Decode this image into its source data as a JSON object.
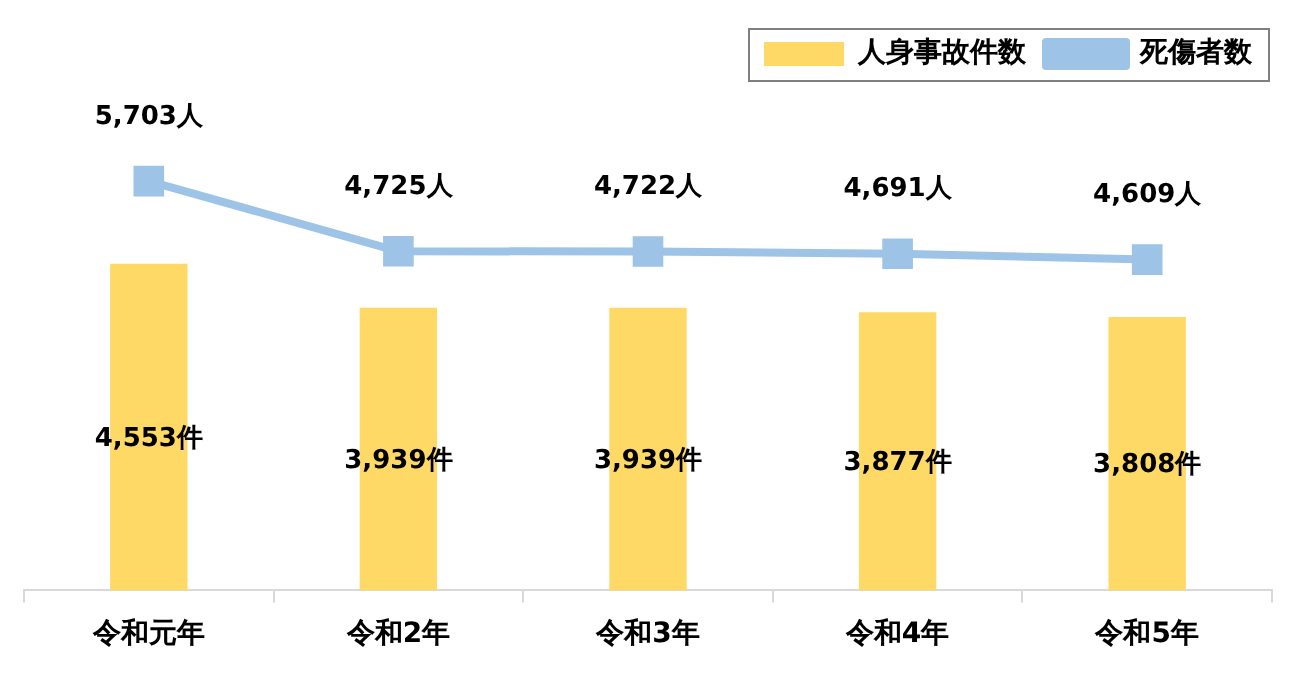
{
  "chart_data": {
    "type": "bar",
    "categories": [
      "令和元年",
      "令和2年",
      "令和3年",
      "令和4年",
      "令和5年"
    ],
    "series": [
      {
        "name": "人身事故件数",
        "color": "#ffd966",
        "values": [
          4553,
          3939,
          3939,
          3877,
          3808
        ],
        "value_labels": [
          "4,553件",
          "3,939件",
          "3,939件",
          "3,877件",
          "3,808件"
        ]
      },
      {
        "name": "死傷者数",
        "type": "line",
        "color": "#9dc3e6",
        "marker": "square",
        "values": [
          5703,
          4725,
          4722,
          4691,
          4609
        ],
        "value_labels": [
          "5,703人",
          "4,725人",
          "4,722人",
          "4,691人",
          "4,609人"
        ]
      }
    ],
    "tick_labels": "x",
    "grid": false,
    "legend": "top right"
  }
}
